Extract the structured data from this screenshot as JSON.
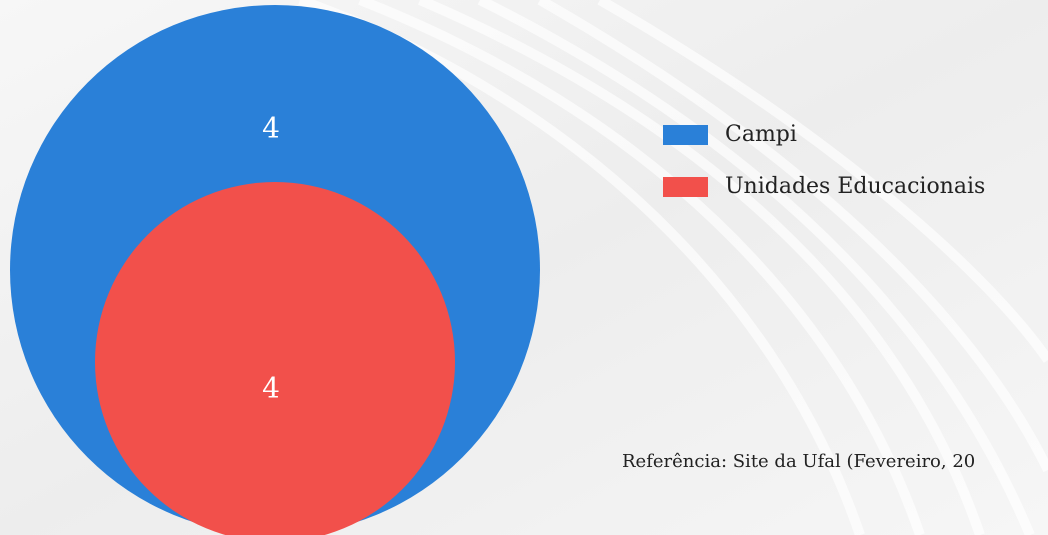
{
  "chart_data": {
    "type": "nested-circles",
    "series": [
      {
        "name": "Campi",
        "color": "#2a80d8",
        "values": [
          4
        ]
      },
      {
        "name": "Unidades Educacionais",
        "color": "#f2504b",
        "values": [
          4
        ]
      }
    ],
    "annotation": "Referência: Site da Ufal (Fevereiro, 20"
  }
}
